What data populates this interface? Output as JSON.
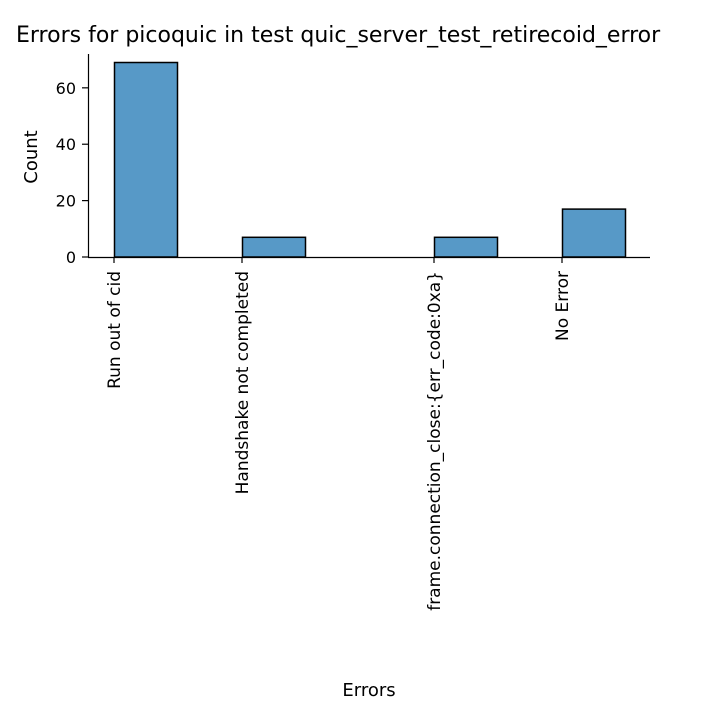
{
  "chart_data": {
    "type": "bar",
    "title": "Errors for picoquic in test quic_server_test_retirecoid_error",
    "xlabel": "Errors",
    "ylabel": "Count",
    "categories": [
      "Run out of cid",
      "Handshake not completed",
      "frame.connection_close:{err_code:0xa}",
      "No Error"
    ],
    "x_positions": [
      0,
      1,
      2.5,
      3.5
    ],
    "values": [
      69,
      7,
      7,
      17
    ],
    "ylim": [
      0,
      72
    ],
    "y_ticks": [
      0,
      20,
      40,
      60
    ],
    "grid": false,
    "bar_color": "#5799c7",
    "edge_color": "#000000"
  }
}
